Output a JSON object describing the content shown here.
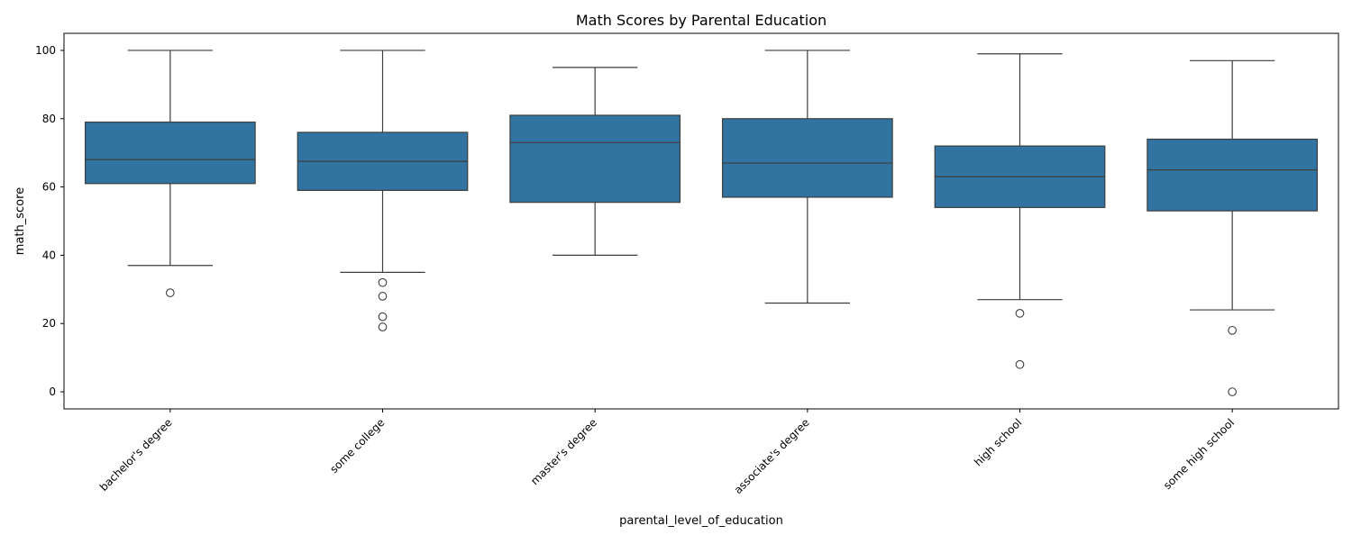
{
  "chart_data": {
    "type": "box",
    "title": "Math Scores by Parental Education",
    "xlabel": "parental_level_of_education",
    "ylabel": "math_score",
    "ylim": [
      -5,
      105
    ],
    "yticks": [
      0,
      20,
      40,
      60,
      80,
      100
    ],
    "grid": false,
    "legend": "none",
    "box_color": "#3274a1",
    "line_color": "#3d3d3d",
    "categories": [
      "bachelor's degree",
      "some college",
      "master's degree",
      "associate's degree",
      "high school",
      "some high school"
    ],
    "boxes": [
      {
        "category": "bachelor's degree",
        "whisker_low": 37,
        "q1": 61,
        "median": 68,
        "q3": 79,
        "whisker_high": 100,
        "outliers": [
          29
        ]
      },
      {
        "category": "some college",
        "whisker_low": 35,
        "q1": 59,
        "median": 67.5,
        "q3": 76,
        "whisker_high": 100,
        "outliers": [
          32,
          28,
          22,
          19
        ]
      },
      {
        "category": "master's degree",
        "whisker_low": 40,
        "q1": 55.5,
        "median": 73,
        "q3": 81,
        "whisker_high": 95,
        "outliers": []
      },
      {
        "category": "associate's degree",
        "whisker_low": 26,
        "q1": 57,
        "median": 67,
        "q3": 80,
        "whisker_high": 100,
        "outliers": []
      },
      {
        "category": "high school",
        "whisker_low": 27,
        "q1": 54,
        "median": 63,
        "q3": 72,
        "whisker_high": 99,
        "outliers": [
          23,
          8
        ]
      },
      {
        "category": "some high school",
        "whisker_low": 24,
        "q1": 53,
        "median": 65,
        "q3": 74,
        "whisker_high": 97,
        "outliers": [
          18,
          0
        ]
      }
    ]
  }
}
